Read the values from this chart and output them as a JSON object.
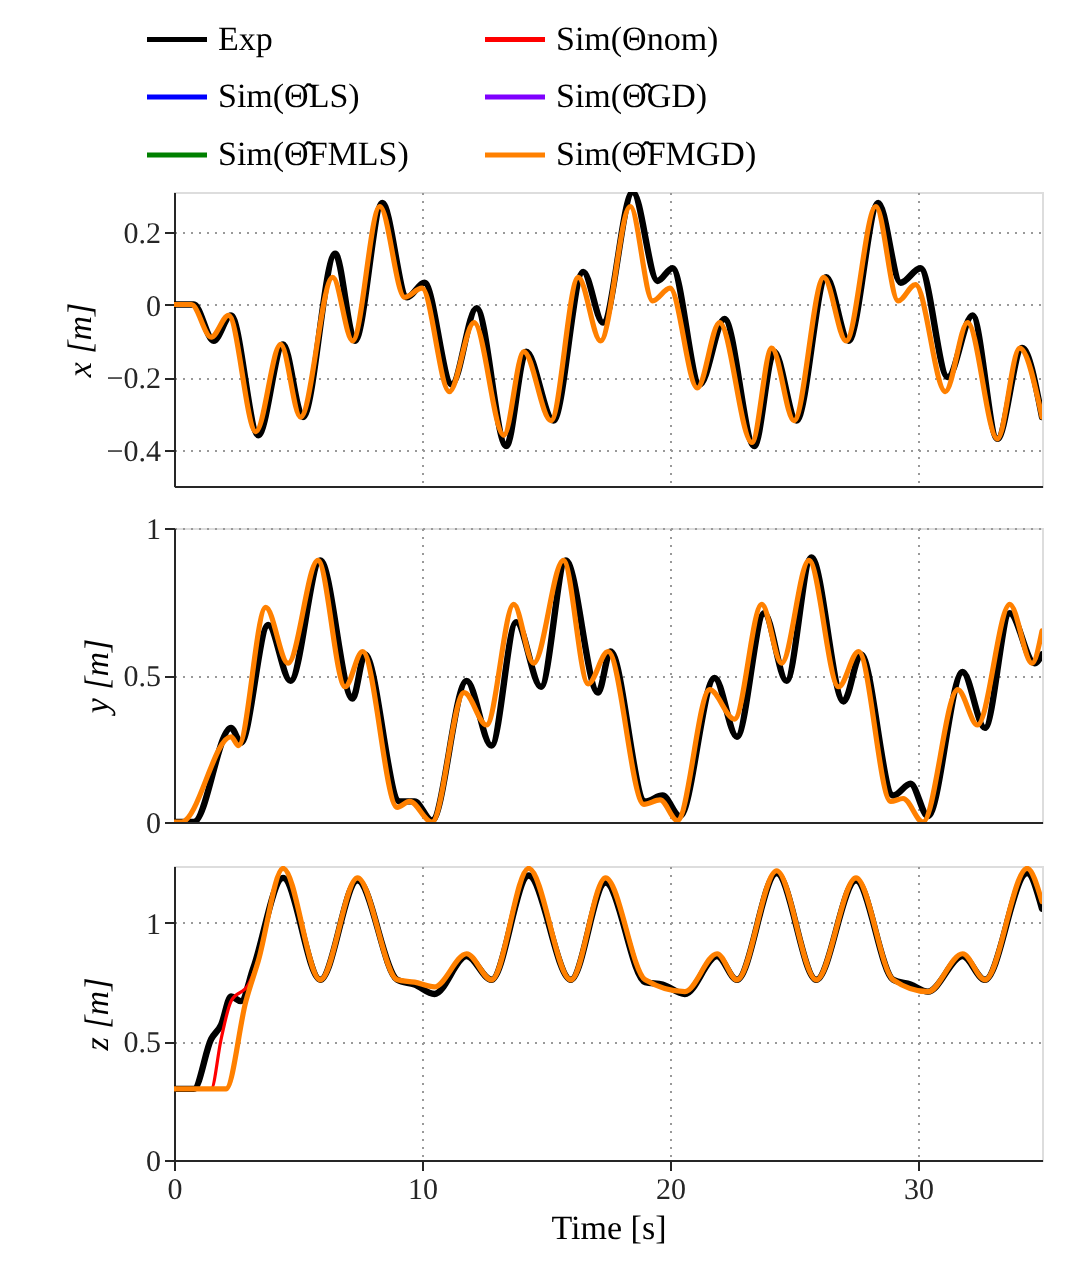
{
  "chart_data": [
    {
      "type": "line",
      "ylabel": "x [m]",
      "xlim": [
        0,
        35
      ],
      "xticks": [
        0,
        10,
        20,
        30
      ],
      "ylim": [
        -0.5,
        0.31
      ],
      "yticks": [
        -0.4,
        -0.2,
        0,
        0.2
      ],
      "tick_labels": "y",
      "grid": true,
      "legend": "top",
      "line_style": "solid",
      "marker": "none",
      "series": [
        {
          "name": "Exp",
          "color": "#000000",
          "x": [
            0,
            0.8,
            1.6,
            2.3,
            3.4,
            4.4,
            5.2,
            6.5,
            7.3,
            8.4,
            9.4,
            10.1,
            11.2,
            12.2,
            13.4,
            14.2,
            15.3,
            16.5,
            17.3,
            18.5,
            19.5,
            20.1,
            21.2,
            22.2,
            23.4,
            24.2,
            25.1,
            26.3,
            27.2,
            28.4,
            29.3,
            30.1,
            31.2,
            32.2,
            33.2,
            34.2,
            35
          ],
          "values": [
            0,
            0,
            -0.1,
            -0.03,
            -0.36,
            -0.11,
            -0.31,
            0.14,
            -0.1,
            0.28,
            0.02,
            0.06,
            -0.22,
            -0.01,
            -0.39,
            -0.13,
            -0.32,
            0.09,
            -0.05,
            0.31,
            0.065,
            0.1,
            -0.22,
            -0.04,
            -0.39,
            -0.13,
            -0.32,
            0.075,
            -0.1,
            0.28,
            0.06,
            0.1,
            -0.2,
            -0.03,
            -0.37,
            -0.12,
            -0.31
          ]
        },
        {
          "name": "Sim(Θnom)",
          "color": "#ff0000"
        },
        {
          "name": "Sim(Θ̂LS)",
          "color": "#0000ff"
        },
        {
          "name": "Sim(Θ̂GD)",
          "color": "#7f00ff"
        },
        {
          "name": "Sim(Θ̂FMLS)",
          "color": "#008000"
        },
        {
          "name": "Sim(Θ̂FMGD)",
          "color": "#ff8000",
          "x": [
            0,
            0.7,
            1.5,
            2.2,
            3.3,
            4.3,
            5.1,
            6.4,
            7.2,
            8.3,
            9.3,
            10.0,
            11.1,
            12.1,
            13.3,
            14.1,
            15.2,
            16.3,
            17.2,
            18.4,
            19.3,
            20.0,
            21.1,
            22.0,
            23.3,
            24.1,
            25.0,
            26.2,
            27.1,
            28.3,
            29.2,
            29.9,
            31.1,
            32.0,
            33.2,
            34.1,
            35
          ],
          "values": [
            0,
            0,
            -0.09,
            -0.03,
            -0.35,
            -0.11,
            -0.31,
            0.075,
            -0.1,
            0.27,
            0.02,
            0.045,
            -0.24,
            -0.05,
            -0.36,
            -0.13,
            -0.32,
            0.075,
            -0.1,
            0.27,
            0.01,
            0.045,
            -0.23,
            -0.05,
            -0.38,
            -0.12,
            -0.32,
            0.075,
            -0.1,
            0.27,
            0.01,
            0.055,
            -0.24,
            -0.05,
            -0.37,
            -0.12,
            -0.31
          ]
        }
      ]
    },
    {
      "type": "line",
      "ylabel": "y [m]",
      "xlim": [
        0,
        35
      ],
      "xticks": [
        0,
        10,
        20,
        30
      ],
      "ylim": [
        0,
        1
      ],
      "yticks": [
        0,
        0.5,
        1
      ],
      "tick_labels": "y",
      "grid": true,
      "line_style": "solid",
      "marker": "none",
      "series": [
        {
          "color": "#000000",
          "x": [
            0,
            0.8,
            2.3,
            2.7,
            3.8,
            4.7,
            5.9,
            7.2,
            7.7,
            9.1,
            9.7,
            10.4,
            11.8,
            12.8,
            13.8,
            14.8,
            15.8,
            17.1,
            17.6,
            19.0,
            19.7,
            20.4,
            21.8,
            22.7,
            23.8,
            24.7,
            25.7,
            27.0,
            27.7,
            29.0,
            29.7,
            30.4,
            31.8,
            32.7,
            33.7,
            34.7,
            35
          ],
          "values": [
            0,
            0,
            0.32,
            0.27,
            0.67,
            0.48,
            0.89,
            0.42,
            0.57,
            0.07,
            0.07,
            0.005,
            0.48,
            0.26,
            0.68,
            0.46,
            0.89,
            0.44,
            0.58,
            0.07,
            0.09,
            0.02,
            0.49,
            0.29,
            0.71,
            0.48,
            0.9,
            0.41,
            0.57,
            0.09,
            0.13,
            0.02,
            0.51,
            0.32,
            0.71,
            0.54,
            0.57
          ]
        },
        {
          "color": "#ff8000",
          "x": [
            0,
            0.3,
            2.3,
            2.6,
            3.7,
            4.6,
            5.8,
            6.9,
            7.6,
            9.0,
            9.5,
            10.4,
            11.7,
            12.6,
            13.7,
            14.5,
            15.7,
            16.7,
            17.5,
            18.95,
            19.6,
            20.3,
            21.6,
            22.6,
            23.7,
            24.5,
            25.6,
            26.8,
            27.6,
            28.9,
            29.4,
            30.2,
            31.6,
            32.4,
            33.7,
            34.6,
            35
          ],
          "values": [
            0,
            0,
            0.29,
            0.26,
            0.73,
            0.54,
            0.89,
            0.46,
            0.58,
            0.05,
            0.07,
            0.0,
            0.44,
            0.33,
            0.74,
            0.54,
            0.89,
            0.47,
            0.58,
            0.06,
            0.075,
            0.005,
            0.45,
            0.35,
            0.74,
            0.54,
            0.89,
            0.46,
            0.58,
            0.07,
            0.08,
            0.0,
            0.45,
            0.33,
            0.74,
            0.54,
            0.65
          ]
        }
      ]
    },
    {
      "type": "line",
      "xlabel": "Time [s]",
      "ylabel": "z [m]",
      "xlim": [
        0,
        35
      ],
      "xticks": [
        0,
        10,
        20,
        30
      ],
      "ylim": [
        0,
        1.24
      ],
      "yticks": [
        0,
        0.5,
        1
      ],
      "grid": true,
      "line_style": "solid",
      "marker": "none",
      "series": [
        {
          "color": "#000000",
          "x": [
            0,
            0.8,
            1.5,
            1.9,
            2.3,
            2.7,
            3.2,
            4.4,
            5.9,
            7.4,
            9.0,
            9.7,
            10.5,
            11.8,
            12.8,
            14.3,
            16.0,
            17.4,
            19.0,
            19.7,
            20.6,
            21.9,
            22.7,
            24.3,
            25.9,
            27.5,
            29.0,
            29.7,
            30.4,
            31.8,
            32.7,
            34.4,
            35
          ],
          "values": [
            0.3,
            0.3,
            0.51,
            0.57,
            0.69,
            0.67,
            0.81,
            1.19,
            0.76,
            1.18,
            0.76,
            0.74,
            0.7,
            0.86,
            0.76,
            1.2,
            0.76,
            1.17,
            0.75,
            0.74,
            0.7,
            0.86,
            0.76,
            1.21,
            0.76,
            1.18,
            0.76,
            0.74,
            0.71,
            0.86,
            0.76,
            1.21,
            1.06
          ]
        },
        {
          "color": "#ff0000",
          "x": [
            0,
            1.5,
            1.9,
            2.3,
            3.0,
            3.4
          ],
          "values": [
            0.3,
            0.3,
            0.51,
            0.67,
            0.74,
            0.84
          ]
        },
        {
          "color": "#ff8000",
          "x": [
            0,
            2.1,
            2.9,
            3.4,
            4.4,
            5.9,
            7.4,
            9.0,
            9.7,
            10.5,
            11.8,
            12.8,
            14.3,
            16.0,
            17.4,
            19.0,
            20.6,
            21.9,
            22.7,
            24.3,
            25.9,
            27.5,
            29.0,
            30.4,
            31.8,
            32.7,
            34.4,
            35
          ],
          "values": [
            0.3,
            0.3,
            0.67,
            0.84,
            1.23,
            0.76,
            1.19,
            0.76,
            0.75,
            0.73,
            0.87,
            0.76,
            1.23,
            0.76,
            1.19,
            0.76,
            0.71,
            0.87,
            0.76,
            1.22,
            0.76,
            1.19,
            0.76,
            0.71,
            0.87,
            0.76,
            1.23,
            1.09
          ]
        }
      ]
    }
  ]
}
